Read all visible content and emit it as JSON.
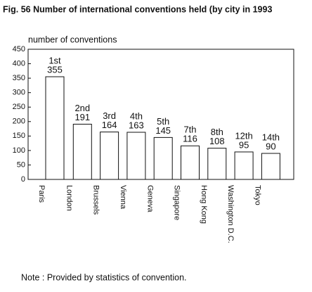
{
  "chart_data": {
    "type": "bar",
    "title": "Fig. 56 Number of international conventions held (by city in 1993",
    "y_label": "number of conventions",
    "categories": [
      "Paris",
      "London",
      "Brussels",
      "Vienna",
      "Geneva",
      "Singapore",
      "Hong Kong",
      "Washington D.C.",
      "Tokyo"
    ],
    "values": [
      355,
      191,
      164,
      163,
      145,
      116,
      108,
      95,
      90
    ],
    "ranks": [
      "1st",
      "2nd",
      "3rd",
      "4th",
      "5th",
      "7th",
      "8th",
      "12th",
      "14th"
    ],
    "color": "#ffffff",
    "ylim": [
      0,
      450
    ],
    "yticks": [
      0,
      50,
      100,
      150,
      200,
      250,
      300,
      350,
      400,
      450
    ],
    "note": "Note : Provided by statistics of convention."
  }
}
